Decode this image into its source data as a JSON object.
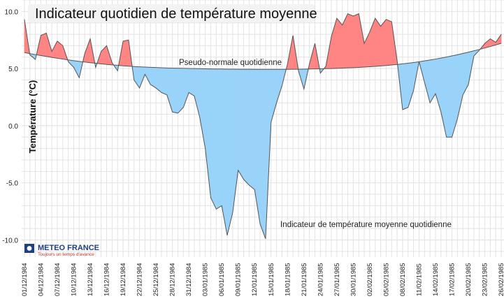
{
  "chart_data": {
    "type": "area",
    "title": "Indicateur quotidien de température moyenne",
    "ylabel": "Température (°C)",
    "xlabel": "",
    "ylim": [
      -11.5,
      11
    ],
    "yticks": [
      10.0,
      5.0,
      0.0,
      -5.0,
      -10.0
    ],
    "ytick_labels": [
      "10.0",
      "5.0",
      "0.0",
      "-5.0",
      "-10.0"
    ],
    "x_tick_labels": [
      "01/12/1984",
      "04/12/1984",
      "07/12/1984",
      "10/12/1984",
      "13/12/1984",
      "16/12/1984",
      "19/12/1984",
      "22/12/1984",
      "25/12/1984",
      "28/12/1984",
      "31/12/1984",
      "03/01/1985",
      "06/01/1985",
      "09/01/1985",
      "12/01/1985",
      "15/01/1985",
      "18/01/1985",
      "21/01/1985",
      "24/01/1985",
      "27/01/1985",
      "30/01/1985",
      "02/02/1985",
      "05/02/1985",
      "08/02/1985",
      "11/02/1985",
      "14/02/1985",
      "17/02/1985",
      "20/02/1985",
      "23/02/1985",
      "26/02/1985"
    ],
    "series": [
      {
        "name": "Indicateur de température moyenne quotidienne",
        "values": [
          9.3,
          6.2,
          5.8,
          7.9,
          8.1,
          6.5,
          7.4,
          7.0,
          5.6,
          5.1,
          4.2,
          6.3,
          7.6,
          5.1,
          6.5,
          7.0,
          5.5,
          4.8,
          7.4,
          7.5,
          4.0,
          3.3,
          4.5,
          3.6,
          3.3,
          2.9,
          2.7,
          1.2,
          1.1,
          1.6,
          2.9,
          2.6,
          0.7,
          -2.0,
          -6.3,
          -7.3,
          -7.0,
          -9.6,
          -7.6,
          -3.9,
          -4.7,
          -5.2,
          -5.6,
          -8.6,
          -9.9,
          0.3,
          2.0,
          3.5,
          5.4,
          7.9,
          4.8,
          3.2,
          5.4,
          7.2,
          4.6,
          5.2,
          7.8,
          9.4,
          8.8,
          9.8,
          9.6,
          9.8,
          7.2,
          8.2,
          9.4,
          8.7,
          9.3,
          9.1,
          5.7,
          1.4,
          1.6,
          3.1,
          5.6,
          3.8,
          2.0,
          2.8,
          1.2,
          -1.0,
          -1.0,
          0.6,
          2.7,
          3.6,
          6.1,
          6.6,
          7.2,
          7.6,
          7.3,
          8.0
        ]
      },
      {
        "name": "Pseudo-normale quotidienne",
        "values": [
          6.4,
          6.31,
          6.22,
          6.14,
          6.06,
          5.98,
          5.9,
          5.83,
          5.76,
          5.69,
          5.63,
          5.57,
          5.51,
          5.46,
          5.41,
          5.36,
          5.32,
          5.28,
          5.24,
          5.21,
          5.18,
          5.15,
          5.13,
          5.11,
          5.09,
          5.07,
          5.05,
          5.04,
          5.03,
          5.02,
          5.01,
          5.0,
          4.99,
          4.98,
          4.97,
          4.96,
          4.96,
          4.95,
          4.95,
          4.94,
          4.94,
          4.94,
          4.93,
          4.93,
          4.93,
          4.93,
          4.93,
          4.93,
          4.93,
          4.94,
          4.94,
          4.95,
          4.96,
          4.97,
          4.98,
          4.99,
          5.0,
          5.02,
          5.04,
          5.06,
          5.08,
          5.1,
          5.13,
          5.16,
          5.19,
          5.23,
          5.27,
          5.31,
          5.36,
          5.41,
          5.47,
          5.53,
          5.6,
          5.67,
          5.75,
          5.83,
          5.92,
          6.01,
          6.11,
          6.21,
          6.32,
          6.43,
          6.55,
          6.67,
          6.8,
          6.93,
          7.07,
          7.21
        ]
      }
    ],
    "colors": {
      "above": "#ff8585",
      "below": "#99d3f9",
      "line": "#555555",
      "grid": "#e3e3e3"
    },
    "annotations": [
      {
        "text": "Pseudo-normale quotidienne"
      },
      {
        "text": "Indicateur de température moyenne quotidienne"
      }
    ]
  },
  "logo": {
    "name": "METEO FRANCE",
    "tagline": "Toujours un temps d'avance"
  }
}
